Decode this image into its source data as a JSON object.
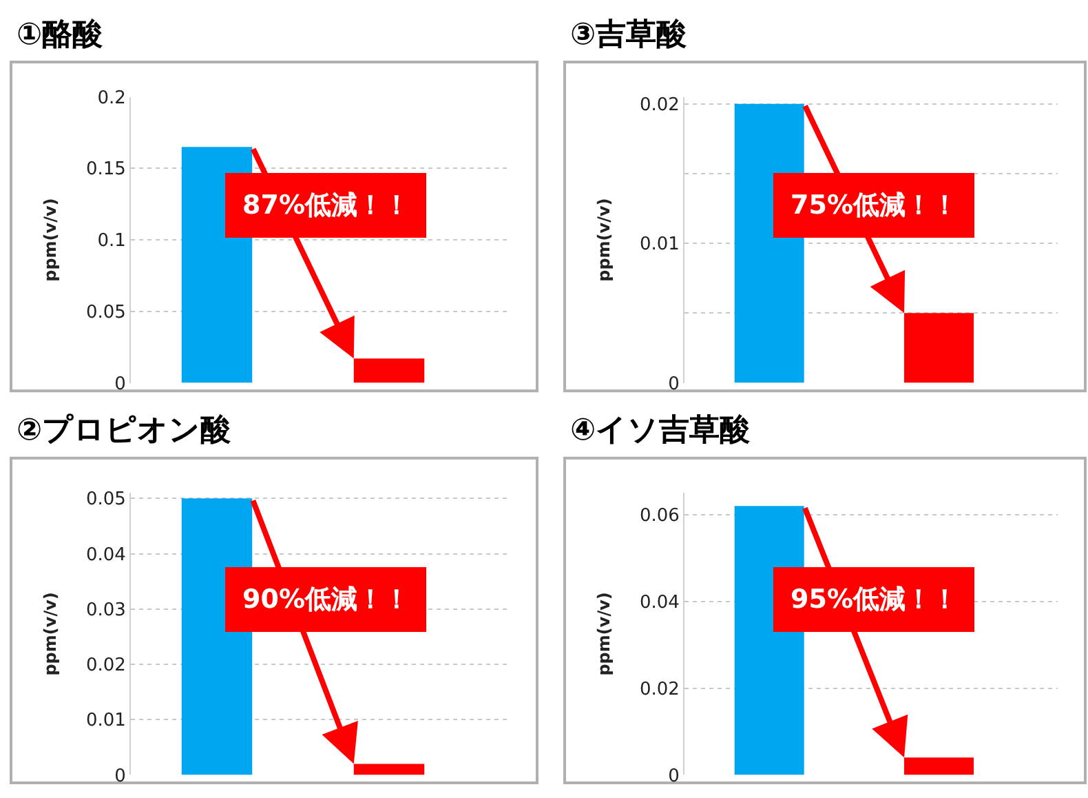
{
  "chart_data": [
    {
      "type": "bar",
      "title": "①酪酸",
      "ylabel": "ppm(v/v)",
      "categories": [
        null,
        null
      ],
      "values": [
        0.165,
        0.017
      ],
      "colors": [
        "#00a6f0",
        "#ff0000"
      ],
      "ylim": [
        0,
        0.2
      ],
      "yticks": [
        0,
        0.05,
        0.1,
        0.15,
        0.2
      ],
      "grid": "y",
      "annotations": [
        "87%低減！！"
      ]
    },
    {
      "type": "bar",
      "title": "③吉草酸",
      "ylabel": "ppm(v/v)",
      "categories": [
        null,
        null
      ],
      "values": [
        0.02,
        0.005
      ],
      "colors": [
        "#00a6f0",
        "#ff0000"
      ],
      "ylim": [
        0,
        0.0205
      ],
      "yticks": [
        0,
        {
          "value": 0.005,
          "label": null
        },
        0.01,
        {
          "value": 0.015,
          "label": null
        },
        0.02
      ],
      "grid": "y",
      "annotations": [
        "75%低減！！"
      ]
    },
    {
      "type": "bar",
      "title": "②プロピオン酸",
      "ylabel": "ppm(v/v)",
      "categories": [
        null,
        null
      ],
      "values": [
        0.05,
        0.002
      ],
      "colors": [
        "#00a6f0",
        "#ff0000"
      ],
      "ylim": [
        0,
        0.051
      ],
      "yticks": [
        0,
        0.01,
        0.02,
        0.03,
        0.04,
        0.05
      ],
      "grid": "y",
      "annotations": [
        "90%低減！！"
      ]
    },
    {
      "type": "bar",
      "title": "④イソ吉草酸",
      "ylabel": "ppm(v/v)",
      "categories": [
        null,
        null
      ],
      "values": [
        0.062,
        0.004
      ],
      "colors": [
        "#00a6f0",
        "#ff0000"
      ],
      "ylim": [
        0,
        0.065
      ],
      "yticks": [
        0,
        0.02,
        0.04,
        0.06
      ],
      "grid": "y",
      "annotations": [
        "95%低減！！"
      ]
    }
  ]
}
